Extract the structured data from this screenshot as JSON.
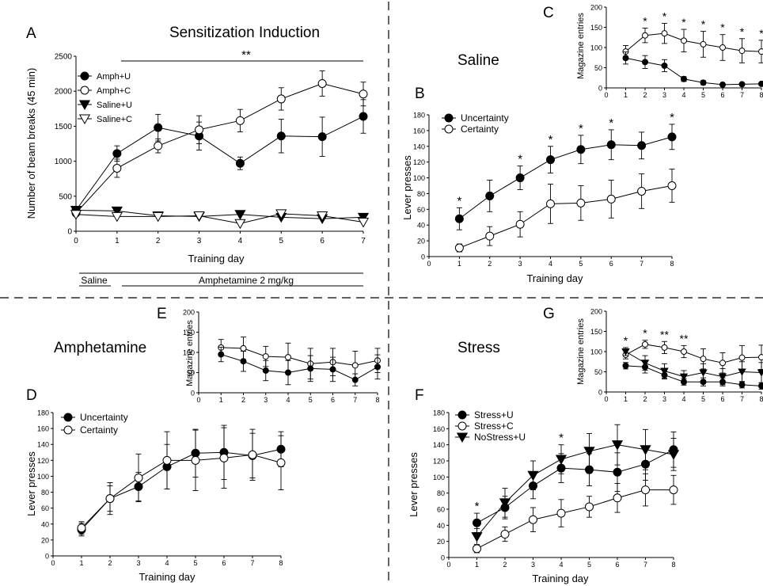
{
  "figure": {
    "section_labels": {
      "saline": "Saline",
      "amphetamine": "Amphetamine",
      "stress": "Stress"
    }
  },
  "chart_data": [
    {
      "id": "A",
      "panel_letter": "A",
      "type": "line",
      "title": "Sensitization Induction",
      "xlabel": "Training day",
      "ylabel": "Number of beam breaks (45 min)",
      "x": [
        0,
        1,
        2,
        3,
        4,
        5,
        6,
        7
      ],
      "xlim": [
        0,
        7
      ],
      "ylim": [
        0,
        2500
      ],
      "xticks": [
        0,
        1,
        2,
        3,
        4,
        5,
        6,
        7
      ],
      "yticks": [
        0,
        500,
        1000,
        1500,
        2000,
        2500
      ],
      "legend_position": "top-left",
      "series": [
        {
          "name": "Amph+U",
          "marker": "circle-filled",
          "values": [
            300,
            1110,
            1480,
            1360,
            970,
            1360,
            1350,
            1640
          ],
          "err": [
            0,
            110,
            190,
            200,
            90,
            240,
            280,
            240
          ]
        },
        {
          "name": "Amph+C",
          "marker": "circle-open",
          "values": [
            260,
            900,
            1220,
            1450,
            1580,
            1890,
            2110,
            1960
          ],
          "err": [
            0,
            130,
            100,
            200,
            160,
            160,
            180,
            170
          ]
        },
        {
          "name": "Saline+U",
          "marker": "triangle-down-filled",
          "values": [
            300,
            290,
            220,
            210,
            240,
            200,
            180,
            200
          ],
          "err": [
            0,
            0,
            0,
            0,
            0,
            0,
            0,
            0
          ]
        },
        {
          "name": "Saline+C",
          "marker": "triangle-down-open",
          "values": [
            240,
            210,
            210,
            220,
            110,
            250,
            220,
            130
          ],
          "err": [
            0,
            0,
            0,
            0,
            0,
            0,
            0,
            0
          ]
        }
      ],
      "significance": "**",
      "phase_labels": {
        "saline": "Saline",
        "amphetamine": "Amphetamine 2 mg/kg"
      }
    },
    {
      "id": "B",
      "panel_letter": "B",
      "type": "line",
      "xlabel": "Training day",
      "ylabel": "Lever presses",
      "x": [
        1,
        2,
        3,
        4,
        5,
        6,
        7,
        8
      ],
      "xlim": [
        0,
        8
      ],
      "ylim": [
        0,
        180
      ],
      "xticks": [
        0,
        1,
        2,
        3,
        4,
        5,
        6,
        7,
        8
      ],
      "yticks": [
        0,
        20,
        40,
        60,
        80,
        100,
        120,
        140,
        160,
        180
      ],
      "legend_position": "top-left",
      "series": [
        {
          "name": "Uncertainty",
          "marker": "circle-filled",
          "values": [
            48,
            77,
            100,
            123,
            136,
            142,
            141,
            152
          ],
          "err": [
            14,
            20,
            15,
            17,
            18,
            19,
            17,
            16
          ]
        },
        {
          "name": "Certainty",
          "marker": "circle-open",
          "values": [
            11,
            26,
            41,
            67,
            68,
            73,
            83,
            90
          ],
          "err": [
            5,
            12,
            16,
            25,
            22,
            24,
            22,
            21
          ]
        }
      ],
      "significance_days": [
        1,
        3,
        4,
        5,
        6,
        8
      ],
      "significance_labels": [
        "*",
        "*",
        "*",
        "*",
        "*",
        "*"
      ]
    },
    {
      "id": "C",
      "panel_letter": "C",
      "type": "line",
      "xlabel": "",
      "ylabel": "Magazine entries",
      "x": [
        1,
        2,
        3,
        4,
        5,
        6,
        7,
        8
      ],
      "xlim": [
        0,
        8
      ],
      "ylim": [
        0,
        200
      ],
      "xticks": [
        0,
        1,
        2,
        3,
        4,
        5,
        6,
        7,
        8
      ],
      "yticks": [
        0,
        50,
        100,
        150,
        200
      ],
      "series": [
        {
          "name": "",
          "marker": "circle-open",
          "values": [
            90,
            130,
            135,
            117,
            108,
            100,
            92,
            90
          ],
          "err": [
            15,
            18,
            25,
            28,
            32,
            32,
            30,
            28
          ]
        },
        {
          "name": "",
          "marker": "circle-filled",
          "values": [
            74,
            64,
            55,
            22,
            13,
            8,
            9,
            10
          ],
          "err": [
            15,
            16,
            15,
            6,
            5,
            3,
            3,
            3
          ]
        }
      ],
      "significance_days": [
        2,
        3,
        4,
        5,
        6,
        7,
        8
      ],
      "significance_labels": [
        "*",
        "*",
        "*",
        "*",
        "*",
        "*",
        "*"
      ]
    },
    {
      "id": "D",
      "panel_letter": "D",
      "type": "line",
      "xlabel": "Training day",
      "ylabel": "Lever presses",
      "x": [
        1,
        2,
        3,
        4,
        5,
        6,
        7,
        8
      ],
      "xlim": [
        0,
        8
      ],
      "ylim": [
        0,
        180
      ],
      "xticks": [
        0,
        1,
        2,
        3,
        4,
        5,
        6,
        7,
        8
      ],
      "yticks": [
        0,
        20,
        40,
        60,
        80,
        100,
        120,
        140,
        160,
        180
      ],
      "legend_position": "top-left",
      "series": [
        {
          "name": "Uncertainty",
          "marker": "circle-filled",
          "values": [
            33,
            72,
            87,
            112,
            129,
            130,
            126,
            134
          ],
          "err": [
            8,
            20,
            18,
            28,
            30,
            34,
            28,
            22
          ]
        },
        {
          "name": "Certainty",
          "marker": "circle-open",
          "values": [
            35,
            72,
            98,
            120,
            120,
            123,
            127,
            117
          ],
          "err": [
            8,
            16,
            30,
            36,
            38,
            38,
            32,
            34
          ]
        }
      ]
    },
    {
      "id": "E",
      "panel_letter": "E",
      "type": "line",
      "xlabel": "",
      "ylabel": "Magazine entries",
      "x": [
        1,
        2,
        3,
        4,
        5,
        6,
        7,
        8
      ],
      "xlim": [
        0,
        8
      ],
      "ylim": [
        0,
        200
      ],
      "xticks": [
        0,
        1,
        2,
        3,
        4,
        5,
        6,
        7,
        8
      ],
      "yticks": [
        0,
        50,
        100,
        150,
        200
      ],
      "series": [
        {
          "name": "",
          "marker": "circle-open",
          "values": [
            112,
            110,
            90,
            88,
            72,
            76,
            68,
            80
          ],
          "err": [
            20,
            28,
            25,
            35,
            38,
            34,
            35,
            30
          ]
        },
        {
          "name": "",
          "marker": "circle-filled",
          "values": [
            95,
            78,
            55,
            50,
            60,
            58,
            32,
            64
          ],
          "err": [
            18,
            25,
            25,
            30,
            32,
            30,
            15,
            30
          ]
        }
      ]
    },
    {
      "id": "F",
      "panel_letter": "F",
      "type": "line",
      "xlabel": "Training day",
      "ylabel": "Lever presses",
      "x": [
        1,
        2,
        3,
        4,
        5,
        6,
        7,
        8
      ],
      "xlim": [
        0,
        8
      ],
      "ylim": [
        0,
        180
      ],
      "xticks": [
        0,
        1,
        2,
        3,
        4,
        5,
        6,
        7,
        8
      ],
      "yticks": [
        0,
        20,
        40,
        60,
        80,
        100,
        120,
        140,
        160,
        180
      ],
      "legend_position": "top-left",
      "series": [
        {
          "name": "Stress+U",
          "marker": "circle-filled",
          "values": [
            43,
            62,
            89,
            111,
            109,
            106,
            116,
            134
          ],
          "err": [
            12,
            14,
            16,
            18,
            20,
            24,
            20,
            22
          ]
        },
        {
          "name": "Stress+C",
          "marker": "circle-open",
          "values": [
            11,
            29,
            47,
            55,
            63,
            74,
            84,
            84
          ],
          "err": [
            5,
            9,
            15,
            17,
            13,
            18,
            20,
            18
          ]
        },
        {
          "name": "NoStress+U",
          "marker": "triangle-down-filled",
          "values": [
            26,
            68,
            102,
            122,
            132,
            140,
            134,
            128
          ],
          "err": [
            10,
            18,
            18,
            18,
            22,
            25,
            25,
            20
          ]
        }
      ],
      "significance_days": [
        1,
        4
      ],
      "significance_labels": [
        "*",
        "*"
      ]
    },
    {
      "id": "G",
      "panel_letter": "G",
      "type": "line",
      "xlabel": "",
      "ylabel": "Magazine entries",
      "x": [
        1,
        2,
        3,
        4,
        5,
        6,
        7,
        8
      ],
      "xlim": [
        0,
        8
      ],
      "ylim": [
        0,
        200
      ],
      "xticks": [
        0,
        1,
        2,
        3,
        4,
        5,
        6,
        7,
        8
      ],
      "yticks": [
        0,
        50,
        100,
        150,
        200
      ],
      "series": [
        {
          "name": "",
          "marker": "circle-open",
          "values": [
            92,
            118,
            110,
            100,
            82,
            72,
            85,
            86
          ],
          "err": [
            10,
            10,
            15,
            15,
            25,
            25,
            30,
            30
          ]
        },
        {
          "name": "",
          "marker": "triangle-down-filled",
          "values": [
            100,
            72,
            52,
            38,
            48,
            38,
            50,
            48
          ],
          "err": [
            10,
            18,
            18,
            15,
            22,
            20,
            25,
            25
          ]
        },
        {
          "name": "",
          "marker": "circle-filled",
          "values": [
            65,
            62,
            42,
            25,
            25,
            25,
            18,
            15
          ],
          "err": [
            8,
            15,
            10,
            8,
            10,
            10,
            8,
            8
          ]
        }
      ],
      "significance_days": [
        1,
        2,
        3,
        4
      ],
      "significance_labels": [
        "*",
        "*",
        "**",
        "**"
      ]
    }
  ]
}
